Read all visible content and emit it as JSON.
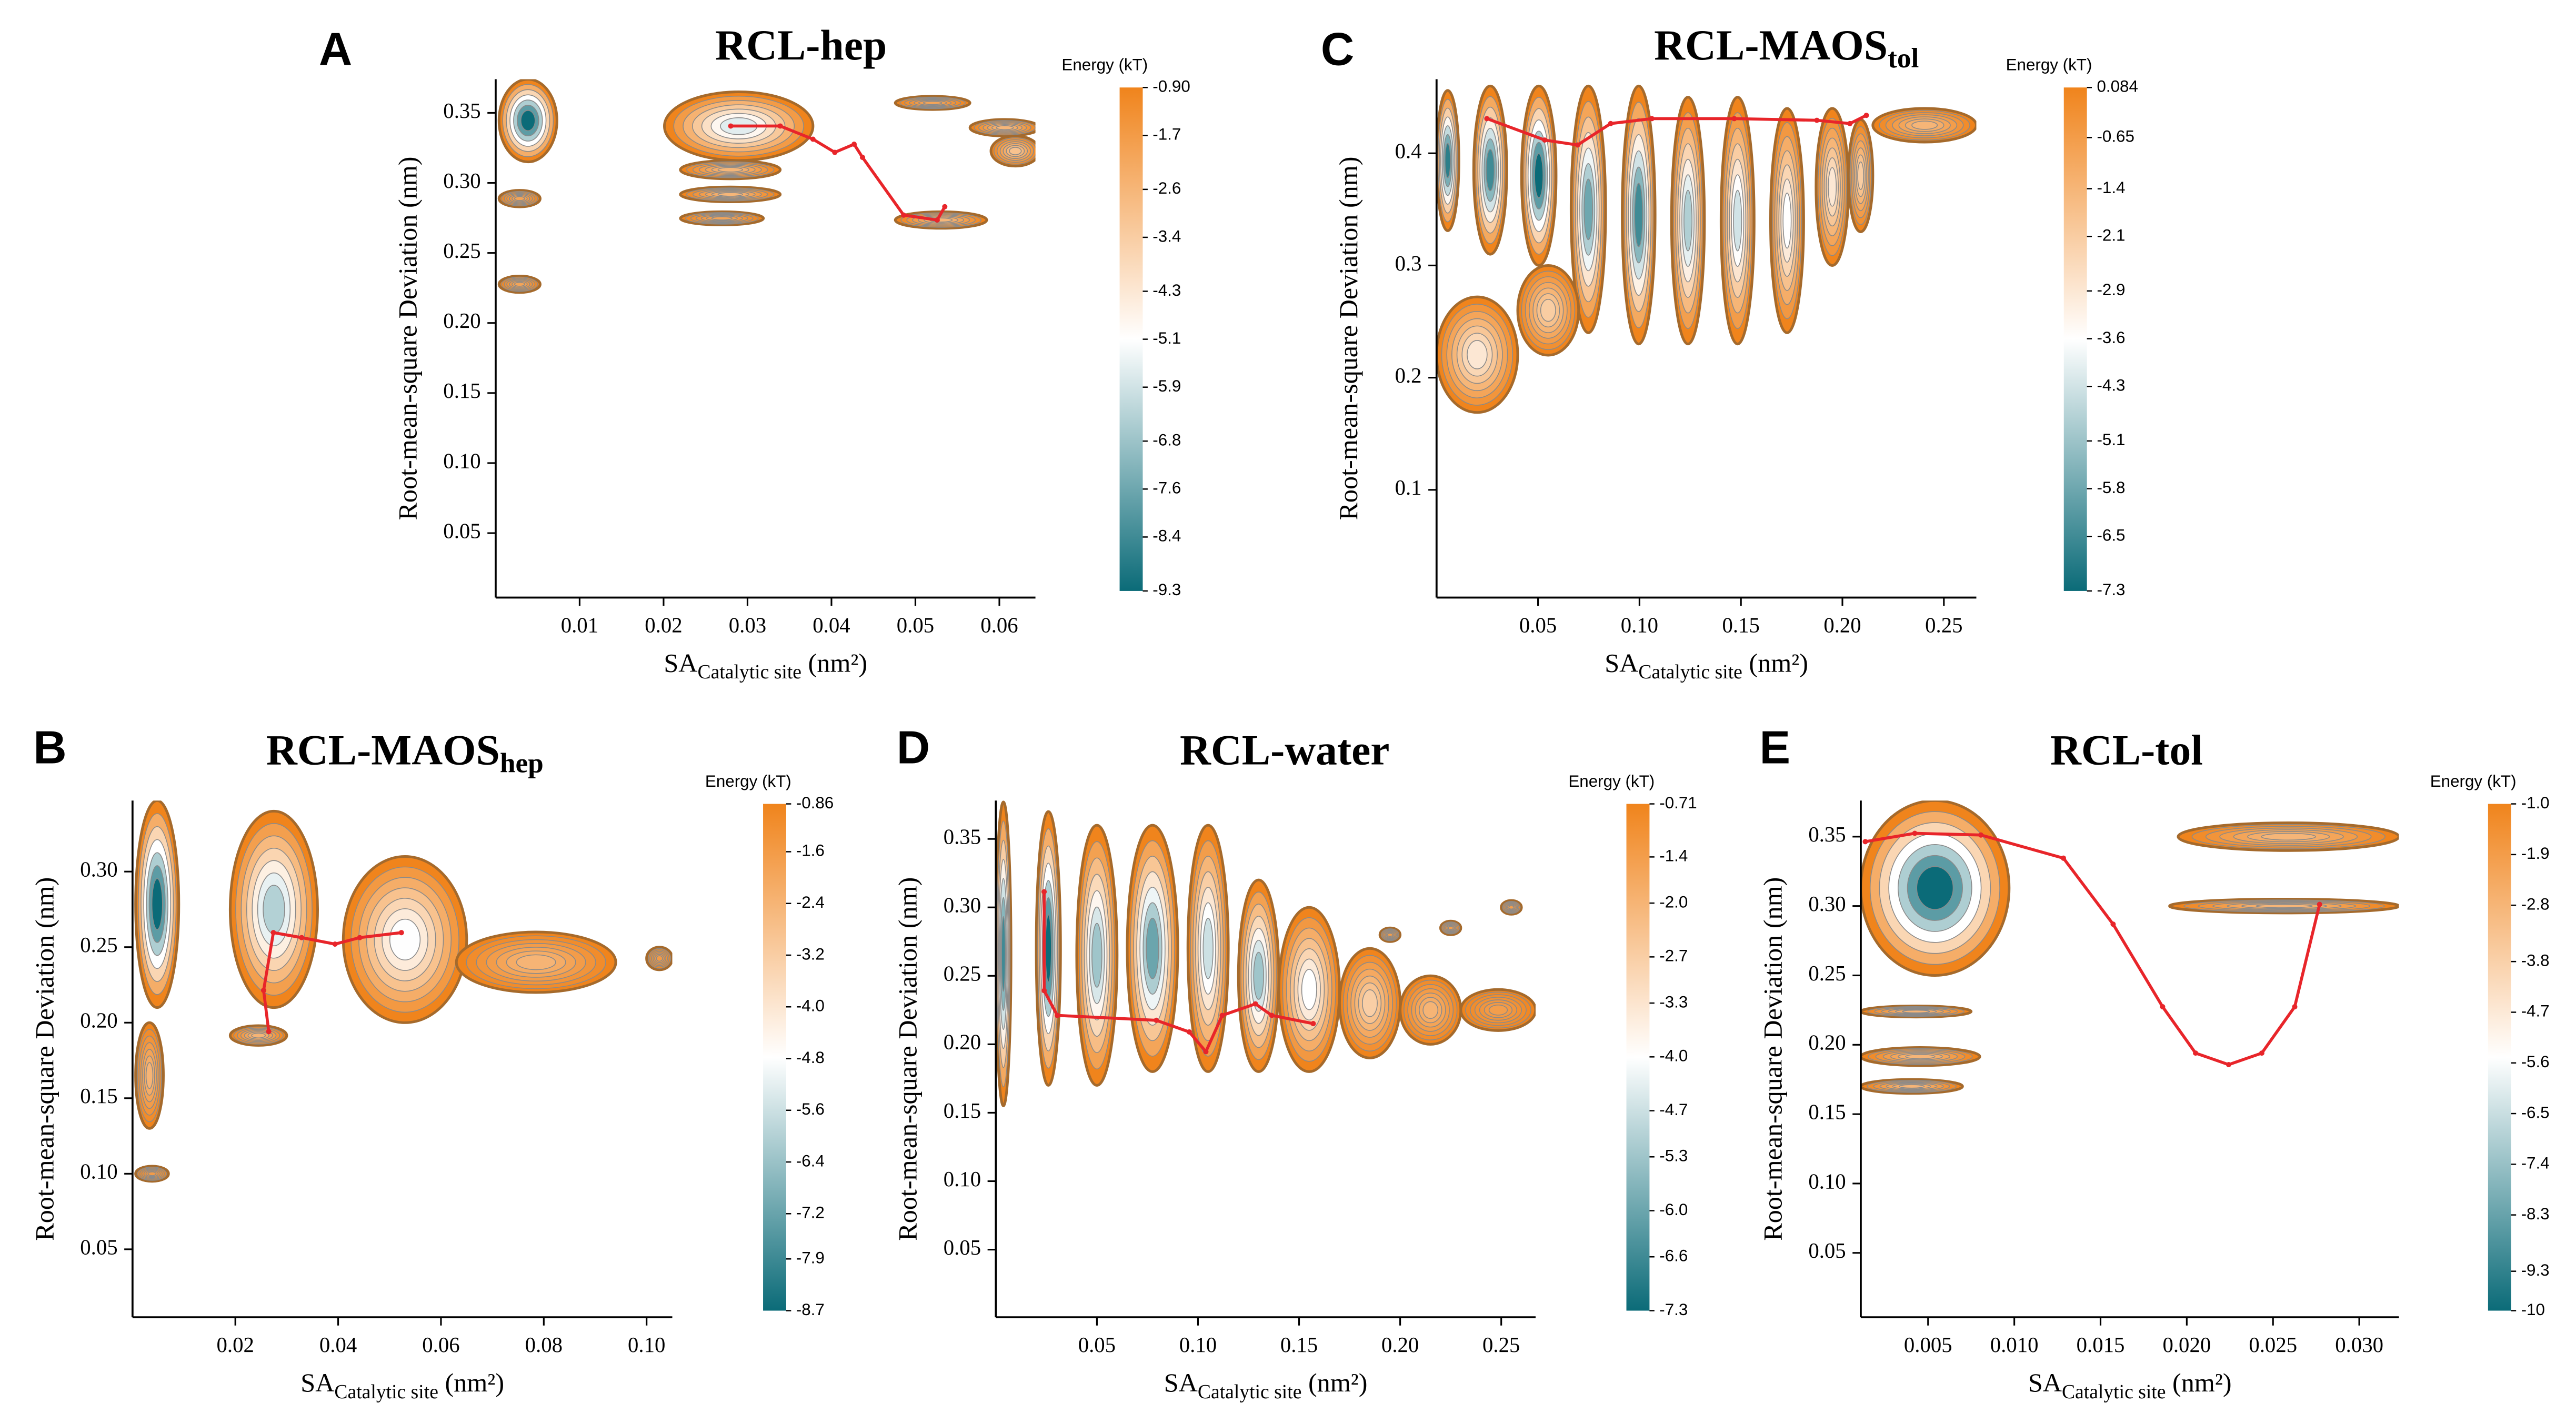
{
  "chart_data": [
    {
      "type": "contour",
      "label": "A",
      "title": "RCL-hep",
      "xlabel": "SA",
      "xlabel_sub": "Catalytic site",
      "xlabel_unit": "(nm²)",
      "ylabel": "Root-mean-square Deviation (nm)",
      "xlim": [
        0,
        0.0643
      ],
      "xticks": [
        0.01,
        0.02,
        0.03,
        0.04,
        0.05,
        0.06
      ],
      "ylim": [
        0.004,
        0.374
      ],
      "yticks": [
        0.05,
        {
          "value": 0.1,
          "label": "0.10"
        },
        0.15,
        {
          "value": 0.2,
          "label": "0.20"
        },
        0.25,
        {
          "value": 0.3,
          "label": "0.30"
        },
        0.35
      ],
      "colorbar_title": "Energy (kT)",
      "clim": [
        -9.3,
        -0.9
      ],
      "cticks": [
        {
          "value": -0.9,
          "label": "-0.90"
        },
        -1.7,
        -2.6,
        -3.4,
        -4.3,
        -5.1,
        -5.9,
        -6.8,
        -7.6,
        -8.4,
        -9.3
      ],
      "colormap": [
        "#0b6b78",
        "#ffffff",
        "#f0841c"
      ],
      "path_color": "#e8252a",
      "basins": [
        {
          "x": [
            0.0004,
            0.0073
          ],
          "y": [
            0.315,
            0.374
          ],
          "energy": -9.3
        },
        {
          "x": [
            0.0201,
            0.0378
          ],
          "y": [
            0.316,
            0.365
          ],
          "energy": -5.6
        },
        {
          "x": [
            0.0476,
            0.0565
          ],
          "y": [
            0.3524,
            0.3618
          ],
          "energy": -2.0
        },
        {
          "x": [
            0.0565,
            0.0648
          ],
          "y": [
            0.3335,
            0.3453
          ],
          "energy": -2.6
        },
        {
          "x": [
            0.059,
            0.0648
          ],
          "y": [
            0.312,
            0.3335
          ],
          "energy": -3.0
        },
        {
          "x": [
            0.022,
            0.0339
          ],
          "y": [
            0.3029,
            0.3159
          ],
          "energy": -2.6
        },
        {
          "x": [
            0.022,
            0.0339
          ],
          "y": [
            0.2865,
            0.2971
          ],
          "energy": -2.6
        },
        {
          "x": [
            0.022,
            0.0319
          ],
          "y": [
            0.27,
            0.2794
          ],
          "energy": -2.0
        },
        {
          "x": [
            0.0476,
            0.0585
          ],
          "y": [
            0.2676,
            0.2794
          ],
          "energy": -2.6
        },
        {
          "x": [
            0.0004,
            0.0053
          ],
          "y": [
            0.2829,
            0.2947
          ],
          "energy": -2.0
        },
        {
          "x": [
            0.0004,
            0.0053
          ],
          "y": [
            0.2218,
            0.2335
          ],
          "energy": -2.0
        }
      ],
      "path": {
        "x": [
          0.028,
          0.0339,
          0.0378,
          0.0404,
          0.0427,
          0.0437,
          0.0486,
          0.0526,
          0.0535
        ],
        "y": [
          0.3406,
          0.3406,
          0.3312,
          0.3218,
          0.3276,
          0.3182,
          0.277,
          0.2735,
          0.283
        ]
      }
    },
    {
      "type": "contour",
      "label": "C",
      "title": "RCL-MAOS",
      "title_sub": "tol",
      "xlabel": "SA",
      "xlabel_sub": "Catalytic site",
      "xlabel_unit": "(nm²)",
      "ylabel": "Root-mean-square Deviation (nm)",
      "xlim": [
        0,
        0.266
      ],
      "xticks": [
        0.05,
        {
          "value": 0.1,
          "label": "0.10"
        },
        0.15,
        {
          "value": 0.2,
          "label": "0.20"
        },
        0.25
      ],
      "ylim": [
        0.004,
        0.466
      ],
      "yticks": [
        0.1,
        0.2,
        0.3,
        0.4
      ],
      "colorbar_title": "Energy (kT)",
      "clim": [
        -7.3,
        0.084
      ],
      "cticks": [
        0.084,
        -0.65,
        -1.4,
        -2.1,
        -2.9,
        -3.6,
        -4.3,
        -5.1,
        -5.8,
        -6.5,
        -7.3
      ],
      "colormap": [
        "#0b6b78",
        "#ffffff",
        "#f0841c"
      ],
      "path_color": "#e8252a",
      "basins": [
        {
          "x": [
            0,
            0.011
          ],
          "y": [
            0.331,
            0.456
          ],
          "energy": -6.8
        },
        {
          "x": [
            0.0183,
            0.0346
          ],
          "y": [
            0.31,
            0.46
          ],
          "energy": -6.5
        },
        {
          "x": [
            0.0419,
            0.0589
          ],
          "y": [
            0.3,
            0.46
          ],
          "energy": -7.3
        },
        {
          "x": [
            0.0663,
            0.0833
          ],
          "y": [
            0.24,
            0.46
          ],
          "energy": -5.8
        },
        {
          "x": [
            0.0915,
            0.1077
          ],
          "y": [
            0.23,
            0.46
          ],
          "energy": -6.5
        },
        {
          "x": [
            0.1158,
            0.132
          ],
          "y": [
            0.23,
            0.45
          ],
          "energy": -4.8
        },
        {
          "x": [
            0.1402,
            0.1565
          ],
          "y": [
            0.23,
            0.45
          ],
          "energy": -4.3
        },
        {
          "x": [
            0.1646,
            0.1809
          ],
          "y": [
            0.24,
            0.44
          ],
          "energy": -3.6
        },
        {
          "x": [
            0.187,
            0.203
          ],
          "y": [
            0.3,
            0.44
          ],
          "energy": -2.9
        },
        {
          "x": [
            0.203,
            0.215
          ],
          "y": [
            0.33,
            0.43
          ],
          "energy": -2.1
        },
        {
          "x": [
            0.215,
            0.266
          ],
          "y": [
            0.41,
            0.44
          ],
          "energy": -1.4
        },
        {
          "x": [
            0,
            0.04
          ],
          "y": [
            0.169,
            0.272
          ],
          "energy": -2.9
        },
        {
          "x": [
            0.04,
            0.07
          ],
          "y": [
            0.22,
            0.3
          ],
          "energy": -2.1
        }
      ],
      "path": {
        "x": [
          0.0248,
          0.0533,
          0.0695,
          0.0858,
          0.1061,
          0.1467,
          0.1874,
          0.2037,
          0.2118
        ],
        "y": [
          0.4309,
          0.4118,
          0.4074,
          0.4265,
          0.4309,
          0.4309,
          0.4294,
          0.4265,
          0.4338
        ]
      }
    },
    {
      "type": "contour",
      "label": "B",
      "title": "RCL-MAOS",
      "title_sub": "hep",
      "xlabel": "SA",
      "xlabel_sub": "Catalytic site",
      "xlabel_unit": "(nm²)",
      "ylabel": "Root-mean-square Deviation (nm)",
      "xlim": [
        0,
        0.105
      ],
      "xticks": [
        0.02,
        0.04,
        0.06,
        0.08,
        {
          "value": 0.1,
          "label": "0.10"
        }
      ],
      "ylim": [
        0.005,
        0.347
      ],
      "yticks": [
        0.05,
        {
          "value": 0.1,
          "label": "0.10"
        },
        0.15,
        {
          "value": 0.2,
          "label": "0.20"
        },
        0.25,
        {
          "value": 0.3,
          "label": "0.30"
        }
      ],
      "colorbar_title": "Energy (kT)",
      "clim": [
        -8.7,
        -0.86
      ],
      "cticks": [
        -0.86,
        -1.6,
        -2.4,
        -3.2,
        {
          "value": -4,
          "label": "-4.0"
        },
        -4.8,
        -5.6,
        -6.4,
        -7.2,
        -7.9,
        -8.7
      ],
      "colormap": [
        "#0b6b78",
        "#ffffff",
        "#f0841c"
      ],
      "path_color": "#e8252a",
      "basins": [
        {
          "x": [
            0.0006,
            0.009
          ],
          "y": [
            0.21,
            0.347
          ],
          "energy": -8.7
        },
        {
          "x": [
            0.019,
            0.036
          ],
          "y": [
            0.21,
            0.34
          ],
          "energy": -6.0
        },
        {
          "x": [
            0.041,
            0.065
          ],
          "y": [
            0.2,
            0.31
          ],
          "energy": -4.8
        },
        {
          "x": [
            0.063,
            0.094
          ],
          "y": [
            0.22,
            0.26
          ],
          "energy": -2.4
        },
        {
          "x": [
            0.1,
            0.105
          ],
          "y": [
            0.235,
            0.25
          ],
          "energy": -1.6
        },
        {
          "x": [
            0.0006,
            0.006
          ],
          "y": [
            0.13,
            0.2
          ],
          "energy": -2.4
        },
        {
          "x": [
            0.0006,
            0.007
          ],
          "y": [
            0.095,
            0.105
          ],
          "energy": -1.6
        },
        {
          "x": [
            0.019,
            0.03
          ],
          "y": [
            0.185,
            0.198
          ],
          "energy": -2.4
        }
      ],
      "path": {
        "x": [
          0.0265,
          0.0255,
          0.0274,
          0.0329,
          0.0394,
          0.0442,
          0.0523
        ],
        "y": [
          0.1941,
          0.2214,
          0.2596,
          0.2563,
          0.252,
          0.2563,
          0.2596
        ]
      }
    },
    {
      "type": "contour",
      "label": "D",
      "title": "RCL-water",
      "xlabel": "SA",
      "xlabel_sub": "Catalytic site",
      "xlabel_unit": "(nm²)",
      "ylabel": "Root-mean-square Deviation (nm)",
      "xlim": [
        0,
        0.267
      ],
      "xticks": [
        0.05,
        {
          "value": 0.1,
          "label": "0.10"
        },
        0.15,
        {
          "value": 0.2,
          "label": "0.20"
        },
        0.25
      ],
      "ylim": [
        0.0006,
        0.378
      ],
      "yticks": [
        0.05,
        {
          "value": 0.1,
          "label": "0.10"
        },
        0.15,
        {
          "value": 0.2,
          "label": "0.20"
        },
        0.25,
        {
          "value": 0.3,
          "label": "0.30"
        },
        0.35
      ],
      "colorbar_title": "Energy (kT)",
      "clim": [
        -7.3,
        -0.71
      ],
      "cticks": [
        -0.71,
        -1.4,
        {
          "value": -2,
          "label": "-2.0"
        },
        -2.7,
        -3.3,
        {
          "value": -4,
          "label": "-4.0"
        },
        -4.7,
        -5.3,
        {
          "value": -6,
          "label": "-6.0"
        },
        -6.6,
        -7.3
      ],
      "colormap": [
        "#0b6b78",
        "#ffffff",
        "#f0841c"
      ],
      "path_color": "#e8252a",
      "basins": [
        {
          "x": [
            0,
            0.0075
          ],
          "y": [
            0.155,
            0.377
          ],
          "energy": -6.6
        },
        {
          "x": [
            0.02,
            0.032
          ],
          "y": [
            0.17,
            0.37
          ],
          "energy": -7.3
        },
        {
          "x": [
            0.04,
            0.06
          ],
          "y": [
            0.17,
            0.36
          ],
          "energy": -5.3
        },
        {
          "x": [
            0.065,
            0.09
          ],
          "y": [
            0.18,
            0.36
          ],
          "energy": -6.0
        },
        {
          "x": [
            0.095,
            0.115
          ],
          "y": [
            0.18,
            0.36
          ],
          "energy": -4.7
        },
        {
          "x": [
            0.12,
            0.14
          ],
          "y": [
            0.18,
            0.32
          ],
          "energy": -5.3
        },
        {
          "x": [
            0.14,
            0.17
          ],
          "y": [
            0.18,
            0.3
          ],
          "energy": -4.0
        },
        {
          "x": [
            0.17,
            0.2
          ],
          "y": [
            0.19,
            0.27
          ],
          "energy": -2.7
        },
        {
          "x": [
            0.2,
            0.23
          ],
          "y": [
            0.2,
            0.25
          ],
          "energy": -2.0
        },
        {
          "x": [
            0.23,
            0.267
          ],
          "y": [
            0.21,
            0.24
          ],
          "energy": -1.4
        },
        {
          "x": [
            0.19,
            0.2
          ],
          "y": [
            0.275,
            0.285
          ],
          "energy": -1.4
        },
        {
          "x": [
            0.22,
            0.23
          ],
          "y": [
            0.28,
            0.29
          ],
          "energy": -1.4
        },
        {
          "x": [
            0.25,
            0.26
          ],
          "y": [
            0.295,
            0.305
          ],
          "energy": -1.4
        }
      ],
      "path": {
        "x": [
          0.0239,
          0.0239,
          0.0304,
          0.0794,
          0.0957,
          0.1039,
          0.112,
          0.1284,
          0.1365,
          0.157
        ],
        "y": [
          0.3114,
          0.2392,
          0.2211,
          0.2175,
          0.209,
          0.1946,
          0.2211,
          0.2295,
          0.2211,
          0.2151
        ]
      }
    },
    {
      "type": "contour",
      "label": "E",
      "title": "RCL-tol",
      "xlabel": "SA",
      "xlabel_sub": "Catalytic site",
      "xlabel_unit": "(nm²)",
      "ylabel": "Root-mean-square Deviation (nm)",
      "xlim": [
        0.0011,
        0.0323
      ],
      "xticks": [
        0.005,
        {
          "value": 0.01,
          "label": "0.010"
        },
        0.015,
        {
          "value": 0.02,
          "label": "0.020"
        },
        0.025,
        {
          "value": 0.03,
          "label": "0.030"
        }
      ],
      "ylim": [
        0.0036,
        0.376
      ],
      "yticks": [
        0.05,
        {
          "value": 0.1,
          "label": "0.10"
        },
        0.15,
        {
          "value": 0.2,
          "label": "0.20"
        },
        0.25,
        {
          "value": 0.3,
          "label": "0.30"
        },
        0.35
      ],
      "colorbar_title": "Energy (kT)",
      "clim": [
        -10,
        -1
      ],
      "cticks": [
        {
          "value": -1,
          "label": "-1.0"
        },
        -1.9,
        -2.8,
        -3.8,
        -4.7,
        -5.6,
        -6.5,
        -7.4,
        -8.3,
        -9.3,
        -10
      ],
      "colormap": [
        "#0b6b78",
        "#ffffff",
        "#f0841c"
      ],
      "path_color": "#e8252a",
      "basins": [
        {
          "x": [
            0.0011,
            0.0097
          ],
          "y": [
            0.25,
            0.376
          ],
          "energy": -10
        },
        {
          "x": [
            0.0011,
            0.0075
          ],
          "y": [
            0.22,
            0.228
          ],
          "energy": -2.8
        },
        {
          "x": [
            0.0011,
            0.008
          ],
          "y": [
            0.185,
            0.198
          ],
          "energy": -2.8
        },
        {
          "x": [
            0.0011,
            0.007
          ],
          "y": [
            0.165,
            0.175
          ],
          "energy": -2.8
        },
        {
          "x": [
            0.0195,
            0.0323
          ],
          "y": [
            0.34,
            0.36
          ],
          "energy": -2.8
        },
        {
          "x": [
            0.019,
            0.0323
          ],
          "y": [
            0.295,
            0.305
          ],
          "energy": -2.8
        }
      ],
      "path": {
        "x": [
          0.00136,
          0.00423,
          0.00806,
          0.01285,
          0.01573,
          0.0186,
          0.02051,
          0.02243,
          0.02435,
          0.02626,
          0.0277
        ],
        "y": [
          0.3464,
          0.3524,
          0.3512,
          0.3345,
          0.2869,
          0.2274,
          0.194,
          0.1857,
          0.194,
          0.2274,
          0.3012
        ]
      }
    }
  ]
}
